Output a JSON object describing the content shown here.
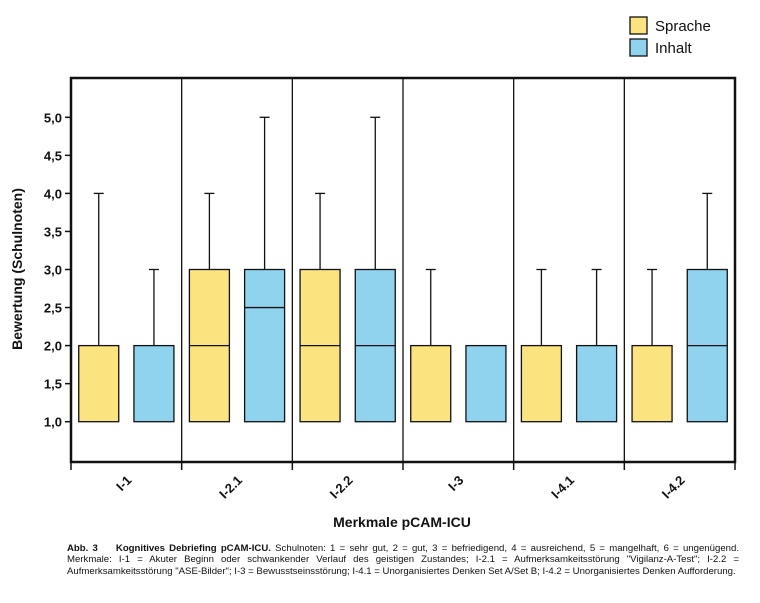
{
  "chart_data": {
    "type": "boxplot",
    "ylabel": "Bewertung (Schulnoten)",
    "xlabel": "Merkmale pCAM-ICU",
    "ylim": [
      0.5,
      5.5
    ],
    "yticks": [
      "1,0",
      "1,5",
      "2,0",
      "2,5",
      "3,0",
      "3,5",
      "4,0",
      "4,5",
      "5,0"
    ],
    "ytick_values": [
      1.0,
      1.5,
      2.0,
      2.5,
      3.0,
      3.5,
      4.0,
      4.5,
      5.0
    ],
    "categories": [
      "I-1",
      "I-2.1",
      "I-2.2",
      "I-3",
      "I-4.1",
      "I-4.2"
    ],
    "grid": false,
    "legend_position": "top-right",
    "series": [
      {
        "name": "Sprache",
        "color": "#fbe37f",
        "boxes": [
          {
            "min": 1.0,
            "q1": 1.0,
            "median": 2.0,
            "q3": 2.0,
            "max": 4.0
          },
          {
            "min": 1.0,
            "q1": 1.0,
            "median": 2.0,
            "q3": 3.0,
            "max": 4.0
          },
          {
            "min": 1.0,
            "q1": 1.0,
            "median": 2.0,
            "q3": 3.0,
            "max": 4.0
          },
          {
            "min": 1.0,
            "q1": 1.0,
            "median": 2.0,
            "q3": 2.0,
            "max": 3.0
          },
          {
            "min": 1.0,
            "q1": 1.0,
            "median": 2.0,
            "q3": 2.0,
            "max": 3.0
          },
          {
            "min": 1.0,
            "q1": 1.0,
            "median": 2.0,
            "q3": 2.0,
            "max": 3.0
          }
        ]
      },
      {
        "name": "Inhalt",
        "color": "#8fd3ee",
        "boxes": [
          {
            "min": 1.0,
            "q1": 1.0,
            "median": 2.0,
            "q3": 2.0,
            "max": 3.0
          },
          {
            "min": 1.0,
            "q1": 1.0,
            "median": 2.5,
            "q3": 3.0,
            "max": 5.0
          },
          {
            "min": 1.0,
            "q1": 1.0,
            "median": 2.0,
            "q3": 3.0,
            "max": 5.0
          },
          {
            "min": 1.0,
            "q1": 1.0,
            "median": 2.0,
            "q3": 2.0,
            "max": 2.0
          },
          {
            "min": 1.0,
            "q1": 1.0,
            "median": 2.0,
            "q3": 2.0,
            "max": 3.0
          },
          {
            "min": 1.0,
            "q1": 1.0,
            "median": 2.0,
            "q3": 3.0,
            "max": 4.0
          }
        ]
      }
    ]
  },
  "caption": {
    "label": "Abb. 3",
    "title": "Kognitives Debriefing pCAM-ICU.",
    "text": "Schulnoten: 1 = sehr gut, 2 = gut, 3 = befriedigend, 4 = ausreichend, 5 = mangelhaft, 6 = ungenügend. Merkmale: I-1 = Akuter Beginn oder schwankender Verlauf des geistigen Zustandes; I-2.1 = Aufmerksamkeitsstörung \"Vigilanz-A-Test\"; I-2.2 = Aufmerksamkeitsstörung \"ASE-Bilder\"; I-3 = Bewusstseinsstörung; I-4.1 = Unorganisiertes Denken Set A/Set B; I-4.2 = Unorganisiertes Denken Aufforderung."
  }
}
